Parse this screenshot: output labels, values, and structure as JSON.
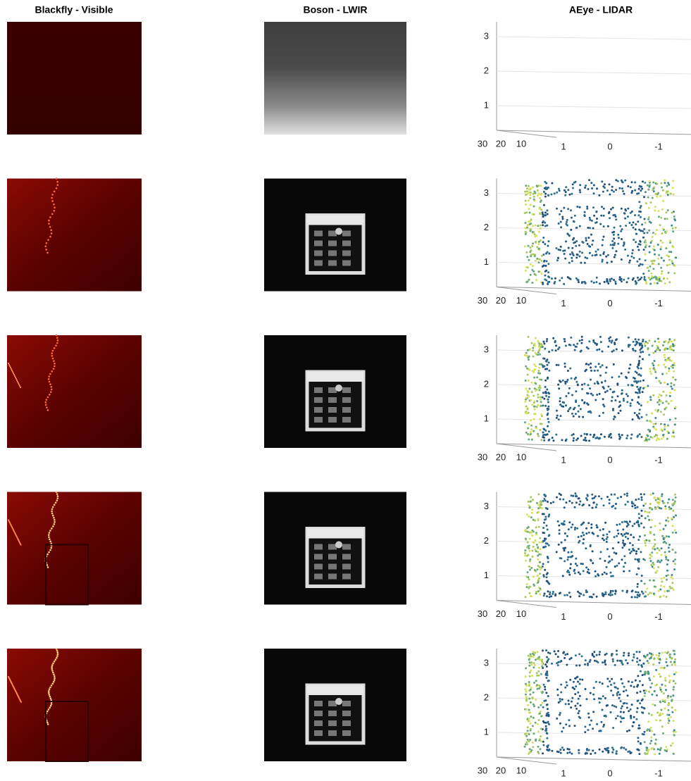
{
  "figure": {
    "titles": [
      "Blackfly - Visible",
      "Boson - LWIR",
      "AEye - LIDAR"
    ],
    "lidar_axes": {
      "z_ticks": [
        1,
        2,
        3
      ],
      "depth_ticks": [
        30,
        20,
        10
      ],
      "lateral_ticks": [
        1,
        0,
        -1
      ]
    }
  }
}
